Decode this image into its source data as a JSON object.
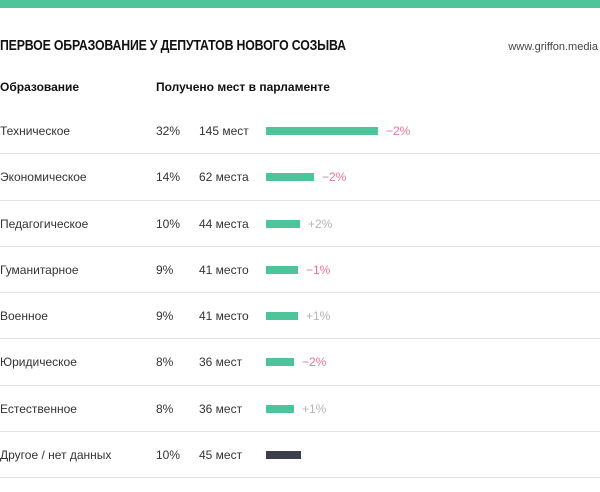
{
  "header": {
    "title": "ПЕРВОЕ ОБРАЗОВАНИЕ У ДЕПУТАТОВ НОВОГО СОЗЫВА",
    "source": "www.griffon.media"
  },
  "columns": {
    "education": "Образование",
    "seats": "Получено мест в парламенте"
  },
  "colors": {
    "accent": "#4dc49a",
    "other": "#3a3f4b",
    "negative": "#e07a9a",
    "positive": "#b5b5b5"
  },
  "chart_data": {
    "type": "bar",
    "title": "ПЕРВОЕ ОБРАЗОВАНИЕ У ДЕПУТАТОВ НОВОГО СОЗЫВА",
    "categories": [
      "Техническое",
      "Экономическое",
      "Педагогическое",
      "Гуманитарное",
      "Военное",
      "Юридическое",
      "Естественное",
      "Другое / нет данных"
    ],
    "values": [
      145,
      62,
      44,
      41,
      41,
      36,
      36,
      45
    ],
    "rows": [
      {
        "name": "Техническое",
        "pct": "32%",
        "seats_label": "145 мест",
        "seats": 145,
        "change": "−2%",
        "trend": "down"
      },
      {
        "name": "Экономическое",
        "pct": "14%",
        "seats_label": "62 места",
        "seats": 62,
        "change": "−2%",
        "trend": "down"
      },
      {
        "name": "Педагогическое",
        "pct": "10%",
        "seats_label": "44 места",
        "seats": 44,
        "change": "+2%",
        "trend": "up"
      },
      {
        "name": "Гуманитарное",
        "pct": "9%",
        "seats_label": "41 место",
        "seats": 41,
        "change": "−1%",
        "trend": "down"
      },
      {
        "name": "Военное",
        "pct": "9%",
        "seats_label": "41 место",
        "seats": 41,
        "change": "+1%",
        "trend": "up"
      },
      {
        "name": "Юридическое",
        "pct": "8%",
        "seats_label": "36 мест",
        "seats": 36,
        "change": "−2%",
        "trend": "down"
      },
      {
        "name": "Естественное",
        "pct": "8%",
        "seats_label": "36 мест",
        "seats": 36,
        "change": "+1%",
        "trend": "up"
      },
      {
        "name": "Другое / нет данных",
        "pct": "10%",
        "seats_label": "45 мест",
        "seats": 45,
        "change": "",
        "trend": "none",
        "other": true
      }
    ]
  }
}
